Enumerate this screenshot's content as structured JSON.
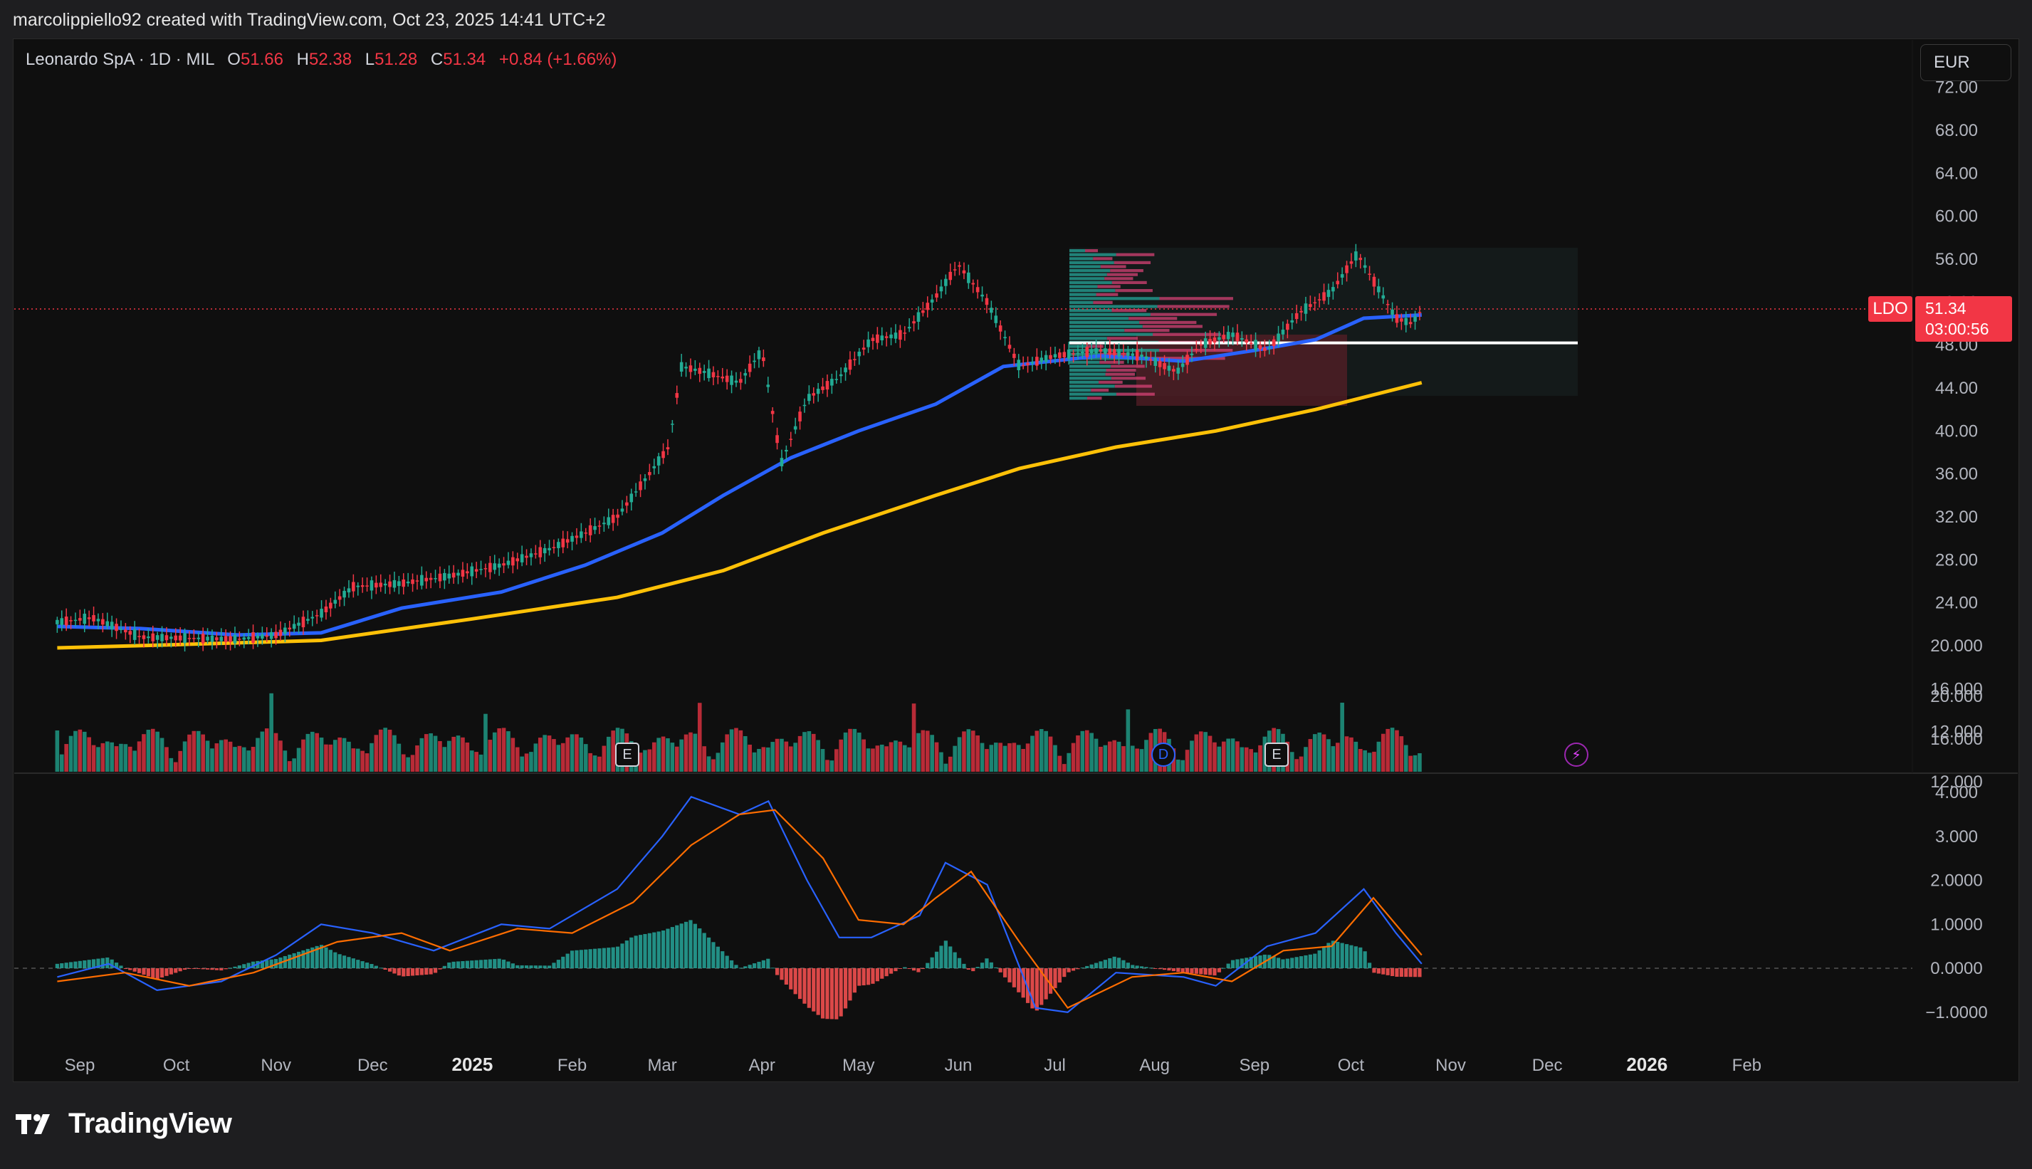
{
  "header": {
    "attribution": "marcolippiello92 created with TradingView.com, Oct 23, 2025 14:41 UTC+2"
  },
  "legend": {
    "name": "Leonardo SpA · 1D · MIL",
    "o_label": "O",
    "o_value": "51.66",
    "h_label": "H",
    "h_value": "52.38",
    "l_label": "L",
    "l_value": "51.28",
    "c_label": "C",
    "c_value": "51.34",
    "change": "+0.84 (+1.66%)"
  },
  "currency_button": "EUR",
  "last_price": {
    "symbol": "LDO",
    "price": "51.34",
    "countdown": "03:00:56"
  },
  "events": {
    "earnings": "E",
    "dividend": "D",
    "flash": "⚡"
  },
  "footer": {
    "brand": "TradingView"
  },
  "colors": {
    "up": "#22ab94",
    "down": "#f23645",
    "ma_fast": "#2962ff",
    "ma_slow": "#ffc107",
    "macd": "#2962ff",
    "signal": "#ff6d00"
  },
  "chart_data": [
    {
      "type": "candlestick",
      "title": "Leonardo SpA · 1D · MIL",
      "y_ticks": [
        "72.00",
        "68.00",
        "64.00",
        "60.00",
        "56.00",
        "52.00",
        "48.00",
        "44.00",
        "40.00",
        "36.00",
        "32.00",
        "28.00",
        "24.00",
        "20.000",
        "16.000",
        "12.000"
      ],
      "x_ticks": [
        "Sep",
        "Oct",
        "Nov",
        "Dec",
        "2025",
        "Feb",
        "Mar",
        "Apr",
        "May",
        "Jun",
        "Jul",
        "Aug",
        "Sep",
        "Oct",
        "Nov",
        "Dec",
        "2026",
        "Feb"
      ],
      "ylim": [
        10,
        73
      ],
      "close_series": [
        [
          "2024-08-25",
          22.2
        ],
        [
          "2024-09-05",
          22.6
        ],
        [
          "2024-09-20",
          20.8
        ],
        [
          "2024-10-05",
          20.7
        ],
        [
          "2024-10-20",
          20.6
        ],
        [
          "2024-11-01",
          21.0
        ],
        [
          "2024-11-15",
          23.0
        ],
        [
          "2024-11-25",
          25.5
        ],
        [
          "2024-12-10",
          25.8
        ],
        [
          "2024-12-25",
          26.5
        ],
        [
          "2025-01-10",
          27.5
        ],
        [
          "2025-01-25",
          29.0
        ],
        [
          "2025-02-05",
          30.5
        ],
        [
          "2025-02-15",
          32.0
        ],
        [
          "2025-02-25",
          36.0
        ],
        [
          "2025-03-03",
          38.5
        ],
        [
          "2025-03-07",
          46.0
        ],
        [
          "2025-03-14",
          45.5
        ],
        [
          "2025-03-25",
          44.5
        ],
        [
          "2025-04-01",
          47.5
        ],
        [
          "2025-04-07",
          37.0
        ],
        [
          "2025-04-15",
          43.0
        ],
        [
          "2025-04-25",
          45.0
        ],
        [
          "2025-05-05",
          48.5
        ],
        [
          "2025-05-15",
          49.0
        ],
        [
          "2025-05-25",
          52.5
        ],
        [
          "2025-06-01",
          55.5
        ],
        [
          "2025-06-10",
          52.0
        ],
        [
          "2025-06-20",
          46.0
        ],
        [
          "2025-07-01",
          47.0
        ],
        [
          "2025-07-15",
          47.5
        ],
        [
          "2025-07-28",
          47.0
        ],
        [
          "2025-08-08",
          45.5
        ],
        [
          "2025-08-15",
          48.0
        ],
        [
          "2025-08-25",
          49.0
        ],
        [
          "2025-09-05",
          47.5
        ],
        [
          "2025-09-15",
          51.0
        ],
        [
          "2025-09-25",
          53.0
        ],
        [
          "2025-10-03",
          56.5
        ],
        [
          "2025-10-10",
          53.0
        ],
        [
          "2025-10-15",
          50.5
        ],
        [
          "2025-10-20",
          50.0
        ],
        [
          "2025-10-23",
          51.34
        ]
      ],
      "sma_fast": [
        [
          "2024-08-25",
          21.8
        ],
        [
          "2024-09-20",
          21.6
        ],
        [
          "2024-10-20",
          21.0
        ],
        [
          "2024-11-15",
          21.2
        ],
        [
          "2024-12-10",
          23.5
        ],
        [
          "2025-01-10",
          25.0
        ],
        [
          "2025-02-05",
          27.5
        ],
        [
          "2025-03-01",
          30.5
        ],
        [
          "2025-03-20",
          34.0
        ],
        [
          "2025-04-10",
          37.5
        ],
        [
          "2025-05-01",
          40.0
        ],
        [
          "2025-05-25",
          42.5
        ],
        [
          "2025-06-15",
          46.0
        ],
        [
          "2025-07-15",
          47.0
        ],
        [
          "2025-08-10",
          46.5
        ],
        [
          "2025-09-01",
          47.5
        ],
        [
          "2025-09-20",
          48.5
        ],
        [
          "2025-10-05",
          50.5
        ],
        [
          "2025-10-23",
          50.8
        ]
      ],
      "sma_slow": [
        [
          "2024-08-25",
          19.8
        ],
        [
          "2024-10-01",
          20.1
        ],
        [
          "2024-11-15",
          20.5
        ],
        [
          "2025-01-01",
          22.5
        ],
        [
          "2025-02-15",
          24.5
        ],
        [
          "2025-03-20",
          27.0
        ],
        [
          "2025-04-20",
          30.5
        ],
        [
          "2025-05-25",
          34.0
        ],
        [
          "2025-06-20",
          36.5
        ],
        [
          "2025-07-20",
          38.5
        ],
        [
          "2025-08-20",
          40.0
        ],
        [
          "2025-09-20",
          42.0
        ],
        [
          "2025-10-23",
          44.5
        ]
      ],
      "horizontal_level": 48.2,
      "volume_ticks": [
        "20.000",
        "16.000",
        "12.000"
      ]
    },
    {
      "type": "line",
      "title": "MACD",
      "y_ticks": [
        "4.000",
        "3.000",
        "2.0000",
        "1.0000",
        "0.0000",
        "−1.0000"
      ],
      "ylim": [
        -1.5,
        4.3
      ],
      "series": [
        {
          "values": [
            [
              "2024-08-25",
              -0.2
            ],
            [
              "2024-09-10",
              0.1
            ],
            [
              "2024-09-25",
              -0.5
            ],
            [
              "2024-10-15",
              -0.3
            ],
            [
              "2024-11-01",
              0.3
            ],
            [
              "2024-11-15",
              1.0
            ],
            [
              "2024-12-01",
              0.8
            ],
            [
              "2024-12-20",
              0.4
            ],
            [
              "2025-01-10",
              1.0
            ],
            [
              "2025-01-25",
              0.9
            ],
            [
              "2025-02-15",
              1.8
            ],
            [
              "2025-03-01",
              3.0
            ],
            [
              "2025-03-10",
              3.9
            ],
            [
              "2025-03-25",
              3.5
            ],
            [
              "2025-04-03",
              3.8
            ],
            [
              "2025-04-15",
              2.0
            ],
            [
              "2025-04-25",
              0.7
            ],
            [
              "2025-05-05",
              0.7
            ],
            [
              "2025-05-20",
              1.2
            ],
            [
              "2025-05-28",
              2.4
            ],
            [
              "2025-06-10",
              1.9
            ],
            [
              "2025-06-25",
              -0.9
            ],
            [
              "2025-07-05",
              -1.0
            ],
            [
              "2025-07-20",
              -0.1
            ],
            [
              "2025-08-10",
              -0.2
            ],
            [
              "2025-08-20",
              -0.4
            ],
            [
              "2025-09-05",
              0.5
            ],
            [
              "2025-09-20",
              0.8
            ],
            [
              "2025-10-05",
              1.8
            ],
            [
              "2025-10-15",
              0.8
            ],
            [
              "2025-10-23",
              0.1
            ]
          ]
        },
        {
          "values": [
            [
              "2024-08-25",
              -0.3
            ],
            [
              "2024-09-15",
              -0.1
            ],
            [
              "2024-10-05",
              -0.4
            ],
            [
              "2024-10-25",
              -0.1
            ],
            [
              "2024-11-20",
              0.6
            ],
            [
              "2024-12-10",
              0.8
            ],
            [
              "2024-12-25",
              0.4
            ],
            [
              "2025-01-15",
              0.9
            ],
            [
              "2025-02-01",
              0.8
            ],
            [
              "2025-02-20",
              1.5
            ],
            [
              "2025-03-10",
              2.8
            ],
            [
              "2025-03-25",
              3.5
            ],
            [
              "2025-04-05",
              3.6
            ],
            [
              "2025-04-20",
              2.5
            ],
            [
              "2025-05-01",
              1.1
            ],
            [
              "2025-05-15",
              1.0
            ],
            [
              "2025-05-25",
              1.6
            ],
            [
              "2025-06-05",
              2.2
            ],
            [
              "2025-06-20",
              0.6
            ],
            [
              "2025-07-05",
              -0.9
            ],
            [
              "2025-07-25",
              -0.2
            ],
            [
              "2025-08-10",
              -0.1
            ],
            [
              "2025-08-25",
              -0.3
            ],
            [
              "2025-09-10",
              0.4
            ],
            [
              "2025-09-25",
              0.5
            ],
            [
              "2025-10-08",
              1.6
            ],
            [
              "2025-10-23",
              0.3
            ]
          ]
        }
      ]
    }
  ]
}
